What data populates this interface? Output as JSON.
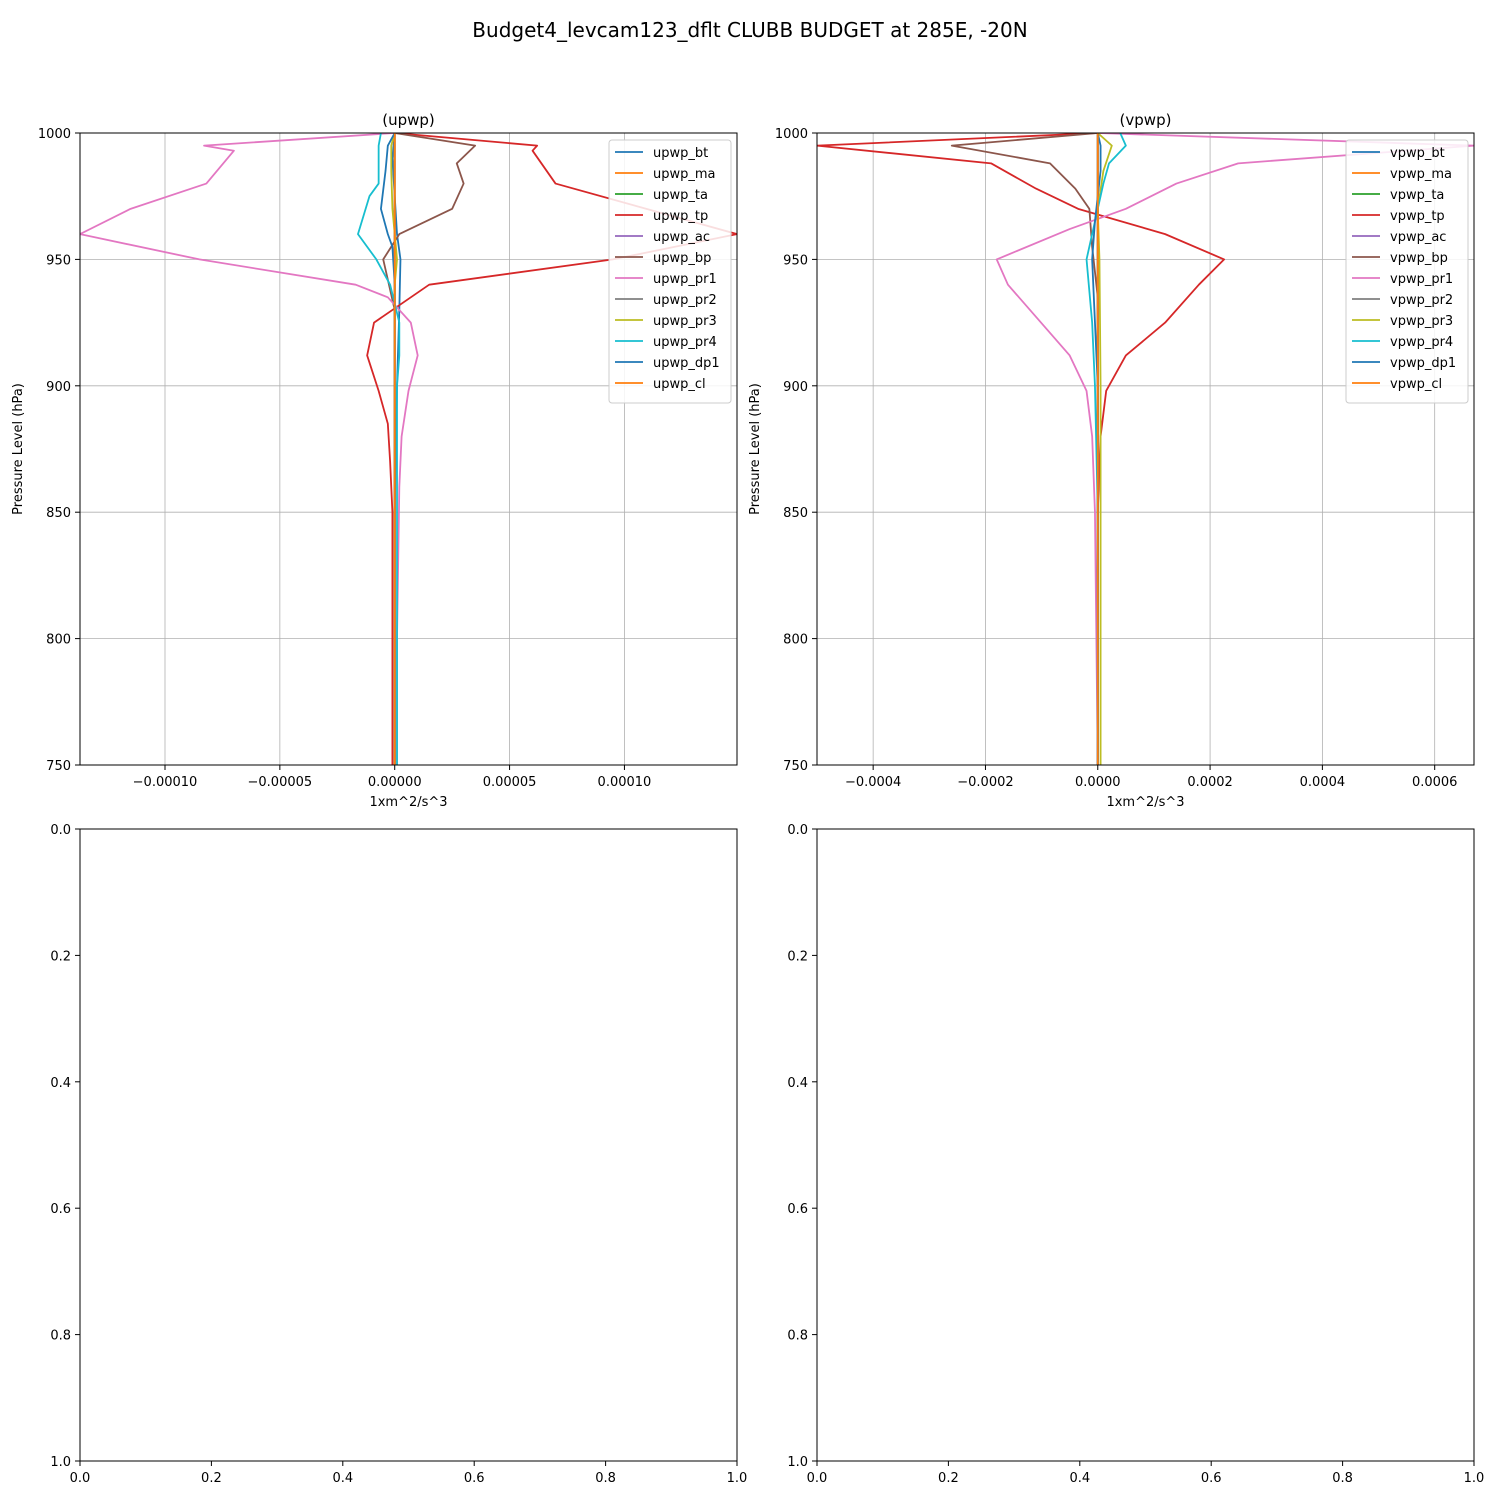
{
  "figure": {
    "title": "Budget4_levcam123_dflt CLUBB BUDGET at 285E, -20N"
  },
  "colors": {
    "bt": "#1f77b4",
    "ma": "#ff7f0e",
    "ta": "#2ca02c",
    "tp": "#d62728",
    "ac": "#9467bd",
    "bp": "#8c564b",
    "pr1": "#e377c2",
    "pr2": "#7f7f7f",
    "pr3": "#bcbd22",
    "pr4": "#17becf",
    "dp1": "#1f77b4",
    "cl": "#ff7f0e"
  },
  "chart_data": [
    {
      "type": "line",
      "title": "(upwp)",
      "xlabel": "1xm^2/s^3",
      "ylabel": "Pressure Level (hPa)",
      "xlim": [
        -0.000137,
        0.000149
      ],
      "ylim": [
        1000,
        750
      ],
      "x_ticks": [
        -0.0001,
        -5e-05,
        0,
        5e-05,
        0.0001
      ],
      "x_tick_labels": [
        "−0.00010",
        "−0.00005",
        "0.00000",
        "0.00005",
        "0.00010"
      ],
      "y_ticks": [
        750,
        800,
        850,
        900,
        950,
        1000
      ],
      "y_tick_labels": [
        "750",
        "800",
        "850",
        "900",
        "950",
        "1000"
      ],
      "grid": true,
      "legend": "upper right",
      "series": [
        {
          "name": "upwp_bt",
          "color_key": "bt",
          "points": [
            [
              0,
              750
            ],
            [
              0,
              850
            ],
            [
              1e-06,
              900
            ],
            [
              2e-06,
              930
            ],
            [
              2.5e-06,
              950
            ],
            [
              1e-06,
              960
            ],
            [
              0,
              975
            ],
            [
              -1e-06,
              990
            ],
            [
              0,
              1000
            ]
          ]
        },
        {
          "name": "upwp_ma",
          "color_key": "ma",
          "points": [
            [
              0,
              750
            ],
            [
              0,
              850
            ],
            [
              0,
              900
            ],
            [
              0,
              950
            ],
            [
              0,
              1000
            ]
          ]
        },
        {
          "name": "upwp_ta",
          "color_key": "ta",
          "points": [
            [
              0,
              750
            ],
            [
              0,
              850
            ],
            [
              0,
              900
            ],
            [
              0,
              950
            ],
            [
              0,
              1000
            ]
          ]
        },
        {
          "name": "upwp_tp",
          "color_key": "tp",
          "points": [
            [
              -1e-06,
              750
            ],
            [
              -1e-06,
              800
            ],
            [
              -1e-06,
              850
            ],
            [
              -2e-06,
              870
            ],
            [
              -3e-06,
              885
            ],
            [
              -7e-06,
              898
            ],
            [
              -1.2e-05,
              912
            ],
            [
              -9e-06,
              925
            ],
            [
              1.5e-05,
              940
            ],
            [
              9.5e-05,
              950
            ],
            [
              0.000149,
              960
            ],
            [
              7e-05,
              980
            ],
            [
              6e-05,
              993
            ],
            [
              6.2e-05,
              995
            ],
            [
              0,
              1000
            ]
          ]
        },
        {
          "name": "upwp_ac",
          "color_key": "ac",
          "points": [
            [
              0,
              750
            ],
            [
              0,
              850
            ],
            [
              0,
              900
            ],
            [
              0,
              950
            ],
            [
              0,
              1000
            ]
          ]
        },
        {
          "name": "upwp_bp",
          "color_key": "bp",
          "points": [
            [
              0,
              750
            ],
            [
              0,
              850
            ],
            [
              0,
              900
            ],
            [
              0,
              930
            ],
            [
              -5e-06,
              950
            ],
            [
              2e-06,
              960
            ],
            [
              2.5e-05,
              970
            ],
            [
              3e-05,
              980
            ],
            [
              2.7e-05,
              988
            ],
            [
              3.5e-05,
              995
            ],
            [
              0,
              1000
            ]
          ]
        },
        {
          "name": "upwp_pr1",
          "color_key": "pr1",
          "points": [
            [
              1e-06,
              750
            ],
            [
              1e-06,
              800
            ],
            [
              2e-06,
              860
            ],
            [
              3e-06,
              880
            ],
            [
              6e-06,
              898
            ],
            [
              1e-05,
              912
            ],
            [
              7e-06,
              925
            ],
            [
              -3e-06,
              935
            ],
            [
              -1.7e-05,
              940
            ],
            [
              -8.5e-05,
              950
            ],
            [
              -0.000137,
              960
            ],
            [
              -0.000115,
              970
            ],
            [
              -8.2e-05,
              980
            ],
            [
              -7e-05,
              993
            ],
            [
              -8.3e-05,
              995
            ],
            [
              0,
              1000
            ]
          ]
        },
        {
          "name": "upwp_pr2",
          "color_key": "pr2",
          "points": [
            [
              0,
              750
            ],
            [
              0,
              850
            ],
            [
              0,
              900
            ],
            [
              0,
              950
            ],
            [
              0,
              1000
            ]
          ]
        },
        {
          "name": "upwp_pr3",
          "color_key": "pr3",
          "points": [
            [
              0,
              750
            ],
            [
              0,
              850
            ],
            [
              0,
              900
            ],
            [
              0,
              940
            ],
            [
              1e-06,
              950
            ],
            [
              0,
              960
            ],
            [
              -1e-06,
              970
            ],
            [
              -1.5e-06,
              985
            ],
            [
              -1.5e-06,
              995
            ],
            [
              0,
              1000
            ]
          ]
        },
        {
          "name": "upwp_pr4",
          "color_key": "pr4",
          "points": [
            [
              1e-06,
              750
            ],
            [
              1e-06,
              850
            ],
            [
              1e-06,
              900
            ],
            [
              2e-06,
              912
            ],
            [
              2e-06,
              925
            ],
            [
              -2e-06,
              940
            ],
            [
              -8e-06,
              950
            ],
            [
              -1.6e-05,
              960
            ],
            [
              -1.1e-05,
              975
            ],
            [
              -7e-06,
              980
            ],
            [
              -7e-06,
              995
            ],
            [
              -6e-06,
              1000
            ]
          ]
        },
        {
          "name": "upwp_dp1",
          "color_key": "dp1",
          "points": [
            [
              0,
              750
            ],
            [
              0,
              850
            ],
            [
              0,
              900
            ],
            [
              0,
              940
            ],
            [
              -1e-06,
              955
            ],
            [
              -3e-06,
              960
            ],
            [
              -6e-06,
              970
            ],
            [
              -4e-06,
              985
            ],
            [
              -3e-06,
              995
            ],
            [
              0,
              1000
            ]
          ]
        },
        {
          "name": "upwp_cl",
          "color_key": "cl",
          "points": [
            [
              0,
              750
            ],
            [
              0,
              850
            ],
            [
              0,
              900
            ],
            [
              0,
              950
            ],
            [
              0,
              1000
            ]
          ]
        }
      ]
    },
    {
      "type": "line",
      "title": "(vpwp)",
      "xlabel": "1xm^2/s^3",
      "ylabel": "Pressure Level (hPa)",
      "xlim": [
        -0.0005,
        0.00067
      ],
      "ylim": [
        1000,
        750
      ],
      "x_ticks": [
        -0.0004,
        -0.0002,
        0,
        0.0002,
        0.0004,
        0.0006
      ],
      "x_tick_labels": [
        "−0.0004",
        "−0.0002",
        "0.0000",
        "0.0002",
        "0.0004",
        "0.0006"
      ],
      "y_ticks": [
        750,
        800,
        850,
        900,
        950,
        1000
      ],
      "y_tick_labels": [
        "750",
        "800",
        "850",
        "900",
        "950",
        "1000"
      ],
      "grid": true,
      "legend": "upper right",
      "series": [
        {
          "name": "vpwp_bt",
          "color_key": "bt",
          "points": [
            [
              0,
              750
            ],
            [
              0,
              850
            ],
            [
              0,
              900
            ],
            [
              0,
              950
            ],
            [
              0,
              1000
            ]
          ]
        },
        {
          "name": "vpwp_ma",
          "color_key": "ma",
          "points": [
            [
              0,
              750
            ],
            [
              0,
              850
            ],
            [
              0,
              900
            ],
            [
              0,
              950
            ],
            [
              0,
              1000
            ]
          ]
        },
        {
          "name": "vpwp_ta",
          "color_key": "ta",
          "points": [
            [
              0,
              750
            ],
            [
              0,
              850
            ],
            [
              0,
              900
            ],
            [
              0,
              950
            ],
            [
              0,
              1000
            ]
          ]
        },
        {
          "name": "vpwp_tp",
          "color_key": "tp",
          "points": [
            [
              0,
              750
            ],
            [
              0,
              850
            ],
            [
              5e-06,
              880
            ],
            [
              1.5e-05,
              898
            ],
            [
              5e-05,
              912
            ],
            [
              0.00012,
              925
            ],
            [
              0.00018,
              940
            ],
            [
              0.000225,
              950
            ],
            [
              0.00012,
              960
            ],
            [
              -3.5e-05,
              970
            ],
            [
              -0.00011,
              978
            ],
            [
              -0.00019,
              988
            ],
            [
              -0.0005,
              995
            ],
            [
              0,
              1000
            ]
          ]
        },
        {
          "name": "vpwp_ac",
          "color_key": "ac",
          "points": [
            [
              0,
              750
            ],
            [
              0,
              850
            ],
            [
              0,
              900
            ],
            [
              0,
              950
            ],
            [
              0,
              1000
            ]
          ]
        },
        {
          "name": "vpwp_bp",
          "color_key": "bp",
          "points": [
            [
              0,
              750
            ],
            [
              0,
              850
            ],
            [
              0,
              900
            ],
            [
              0,
              935
            ],
            [
              -5e-06,
              945
            ],
            [
              -1e-05,
              955
            ],
            [
              -1.5e-05,
              970
            ],
            [
              -4e-05,
              978
            ],
            [
              -8.5e-05,
              988
            ],
            [
              -0.00026,
              995
            ],
            [
              0,
              1000
            ]
          ]
        },
        {
          "name": "vpwp_pr1",
          "color_key": "pr1",
          "points": [
            [
              0,
              750
            ],
            [
              -5e-06,
              850
            ],
            [
              -1e-05,
              880
            ],
            [
              -2e-05,
              898
            ],
            [
              -5e-05,
              912
            ],
            [
              -0.00016,
              940
            ],
            [
              -0.00018,
              950
            ],
            [
              -5e-05,
              962
            ],
            [
              5e-05,
              970
            ],
            [
              0.00014,
              980
            ],
            [
              0.00025,
              988
            ],
            [
              0.00067,
              995
            ],
            [
              0,
              1000
            ]
          ]
        },
        {
          "name": "vpwp_pr2",
          "color_key": "pr2",
          "points": [
            [
              0,
              750
            ],
            [
              0,
              850
            ],
            [
              0,
              900
            ],
            [
              0,
              950
            ],
            [
              0,
              1000
            ]
          ]
        },
        {
          "name": "vpwp_pr3",
          "color_key": "pr3",
          "points": [
            [
              5e-06,
              750
            ],
            [
              5e-06,
              850
            ],
            [
              5e-06,
              900
            ],
            [
              3e-06,
              950
            ],
            [
              0,
              970
            ],
            [
              1e-05,
              985
            ],
            [
              2.5e-05,
              995
            ],
            [
              0,
              1000
            ]
          ]
        },
        {
          "name": "vpwp_pr4",
          "color_key": "pr4",
          "points": [
            [
              0,
              750
            ],
            [
              0,
              850
            ],
            [
              -5e-06,
              900
            ],
            [
              -1e-05,
              925
            ],
            [
              -2e-05,
              950
            ],
            [
              -5e-06,
              965
            ],
            [
              1e-05,
              980
            ],
            [
              2e-05,
              988
            ],
            [
              5e-05,
              995
            ],
            [
              4e-05,
              1000
            ]
          ]
        },
        {
          "name": "vpwp_dp1",
          "color_key": "dp1",
          "points": [
            [
              0,
              750
            ],
            [
              0,
              850
            ],
            [
              0,
              900
            ],
            [
              -1e-05,
              950
            ],
            [
              -5e-06,
              965
            ],
            [
              5e-06,
              985
            ],
            [
              5e-06,
              995
            ],
            [
              0,
              1000
            ]
          ]
        },
        {
          "name": "vpwp_cl",
          "color_key": "cl",
          "points": [
            [
              0,
              750
            ],
            [
              0,
              850
            ],
            [
              0,
              900
            ],
            [
              0,
              950
            ],
            [
              0,
              1000
            ]
          ]
        }
      ]
    },
    {
      "type": "line",
      "title": "",
      "xlabel": "",
      "ylabel": "",
      "xlim": [
        0,
        1
      ],
      "ylim": [
        0,
        1
      ],
      "x_ticks": [
        0,
        0.2,
        0.4,
        0.6,
        0.8,
        1
      ],
      "x_tick_labels": [
        "0.0",
        "0.2",
        "0.4",
        "0.6",
        "0.8",
        "1.0"
      ],
      "y_ticks": [
        0,
        0.2,
        0.4,
        0.6,
        0.8,
        1
      ],
      "y_tick_labels": [
        "0.0",
        "0.2",
        "0.4",
        "0.6",
        "0.8",
        "1.0"
      ],
      "grid": false,
      "series": []
    },
    {
      "type": "line",
      "title": "",
      "xlabel": "",
      "ylabel": "",
      "xlim": [
        0,
        1
      ],
      "ylim": [
        0,
        1
      ],
      "x_ticks": [
        0,
        0.2,
        0.4,
        0.6,
        0.8,
        1
      ],
      "x_tick_labels": [
        "0.0",
        "0.2",
        "0.4",
        "0.6",
        "0.8",
        "1.0"
      ],
      "y_ticks": [
        0,
        0.2,
        0.4,
        0.6,
        0.8,
        1
      ],
      "y_tick_labels": [
        "0.0",
        "0.2",
        "0.4",
        "0.6",
        "0.8",
        "1.0"
      ],
      "grid": false,
      "series": []
    }
  ]
}
